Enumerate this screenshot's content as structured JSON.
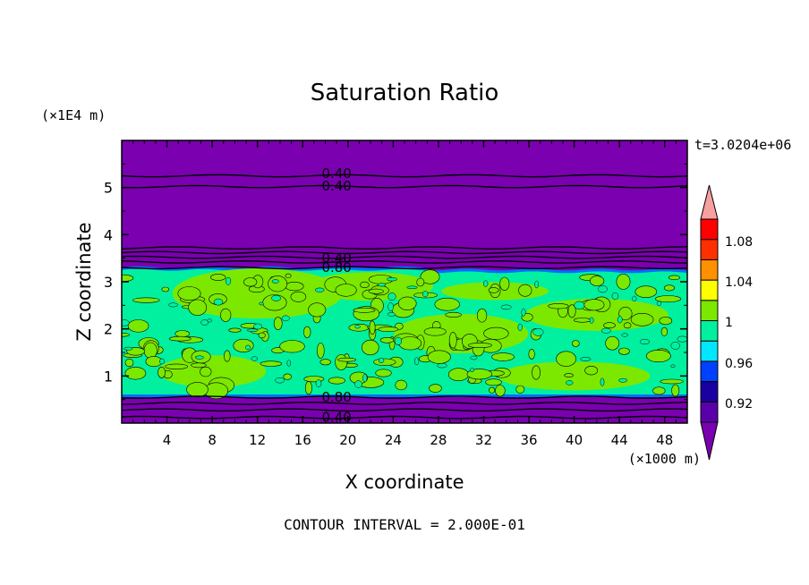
{
  "chart_data": {
    "type": "heatmap",
    "title": "Saturation Ratio",
    "xlabel": "X coordinate",
    "ylabel": "Z coordinate",
    "x_unit": "(×1000 m)",
    "y_unit": "(×1E4 m)",
    "time_label": "t=3.0204e+06",
    "footer": "CONTOUR INTERVAL = 2.000E-01",
    "xlim": [
      0,
      50
    ],
    "ylim": [
      0,
      6
    ],
    "x_ticks": [
      4,
      8,
      12,
      16,
      20,
      24,
      28,
      32,
      36,
      40,
      44,
      48
    ],
    "y_ticks": [
      1,
      2,
      3,
      4,
      5
    ],
    "x_tick_labels": [
      "4",
      "8",
      "12",
      "16",
      "20",
      "24",
      "28",
      "32",
      "36",
      "40",
      "44",
      "48"
    ],
    "y_tick_labels": [
      "1",
      "2",
      "3",
      "4",
      "5"
    ],
    "contour_labels": [
      {
        "text": "0.40",
        "x": 19,
        "y": 5.3
      },
      {
        "text": "0.40",
        "x": 19,
        "y": 5.03
      },
      {
        "text": "0.40",
        "x": 19,
        "y": 3.5
      },
      {
        "text": "0.80",
        "x": 19,
        "y": 3.3
      },
      {
        "text": "0.80",
        "x": 19,
        "y": 0.55
      },
      {
        "text": "0.40",
        "x": 19,
        "y": 0.12
      }
    ],
    "contour_levels_z": [
      5.25,
      5.02,
      3.72,
      3.62,
      3.52,
      3.42,
      3.3,
      0.55,
      0.42,
      0.28,
      0.12
    ],
    "regions": [
      {
        "level": "<0.92",
        "z_range": [
          3.3,
          6
        ]
      },
      {
        "level": "0.96-1",
        "z_range": [
          0.6,
          3.3
        ]
      },
      {
        "level": "1-1.02",
        "z_range": [
          0.6,
          3.25
        ],
        "pattern": "patchy"
      },
      {
        "level": "<0.92",
        "z_range": [
          0,
          0.6
        ]
      }
    ],
    "colorbar": {
      "labels": [
        "1.08",
        "1.04",
        "1",
        "0.96",
        "0.92"
      ],
      "colors": [
        "#5a00aa",
        "#1a00a0",
        "#0040ff",
        "#00e8ff",
        "#00f0a0",
        "#7ce800",
        "#ffff00",
        "#ff9000",
        "#ff3000",
        "#ff0000",
        "#f8a0a0"
      ],
      "bottom_color": "#7a00b0",
      "top_color": "#f8a0a0"
    },
    "grid": false
  }
}
